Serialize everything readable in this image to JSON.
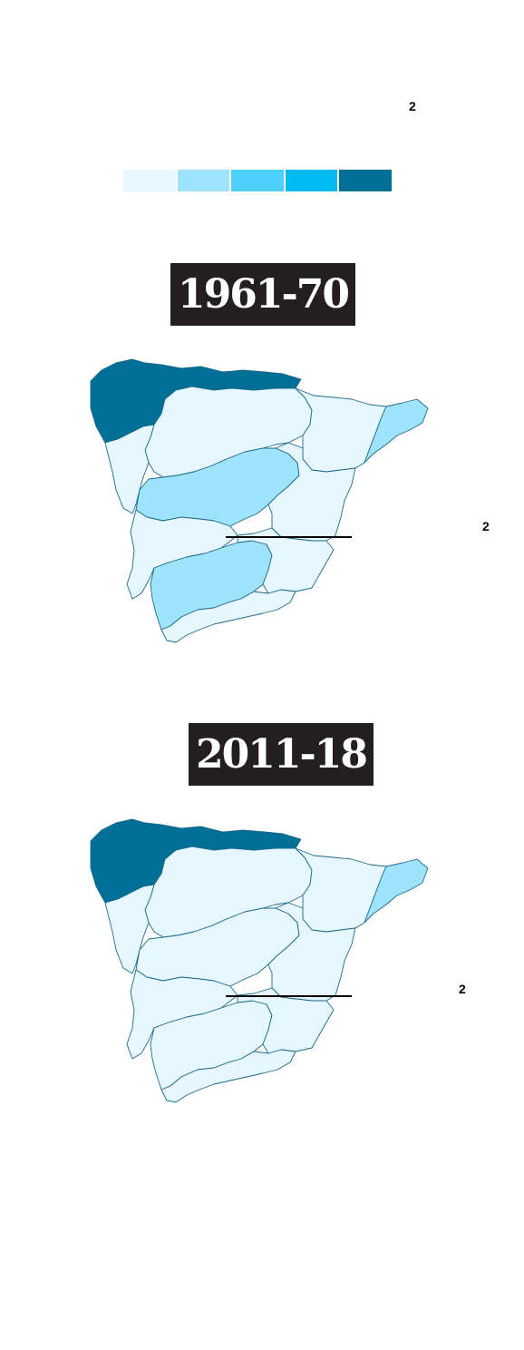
{
  "top_note": {
    "superscript": "2"
  },
  "legend": {
    "colors": [
      "#e6f7ff",
      "#9fe4fc",
      "#4dd1fa",
      "#00baf2",
      "#006f96"
    ]
  },
  "maps": [
    {
      "period": "1961-70",
      "callout": {
        "superscript": "2"
      },
      "regions": [
        {
          "name": "northwest",
          "class_index": 4
        },
        {
          "name": "north-central",
          "class_index": 0
        },
        {
          "name": "northeast",
          "class_index": 0
        },
        {
          "name": "catalonia",
          "class_index": 1
        },
        {
          "name": "west-north",
          "class_index": 0
        },
        {
          "name": "central-band",
          "class_index": 1
        },
        {
          "name": "east",
          "class_index": 0
        },
        {
          "name": "southwest",
          "class_index": 0
        },
        {
          "name": "south",
          "class_index": 1
        },
        {
          "name": "southeast",
          "class_index": 0
        },
        {
          "name": "south-coast",
          "class_index": 0
        }
      ]
    },
    {
      "period": "2011-18",
      "callout": {
        "superscript": "2"
      },
      "regions": [
        {
          "name": "northwest",
          "class_index": 4
        },
        {
          "name": "north-central",
          "class_index": 0
        },
        {
          "name": "northeast",
          "class_index": 0
        },
        {
          "name": "catalonia",
          "class_index": 1
        },
        {
          "name": "west-north",
          "class_index": 0
        },
        {
          "name": "central-band",
          "class_index": 0
        },
        {
          "name": "east",
          "class_index": 0
        },
        {
          "name": "southwest",
          "class_index": 0
        },
        {
          "name": "south",
          "class_index": 0
        },
        {
          "name": "southeast",
          "class_index": 0
        },
        {
          "name": "south-coast",
          "class_index": 0
        }
      ]
    }
  ]
}
